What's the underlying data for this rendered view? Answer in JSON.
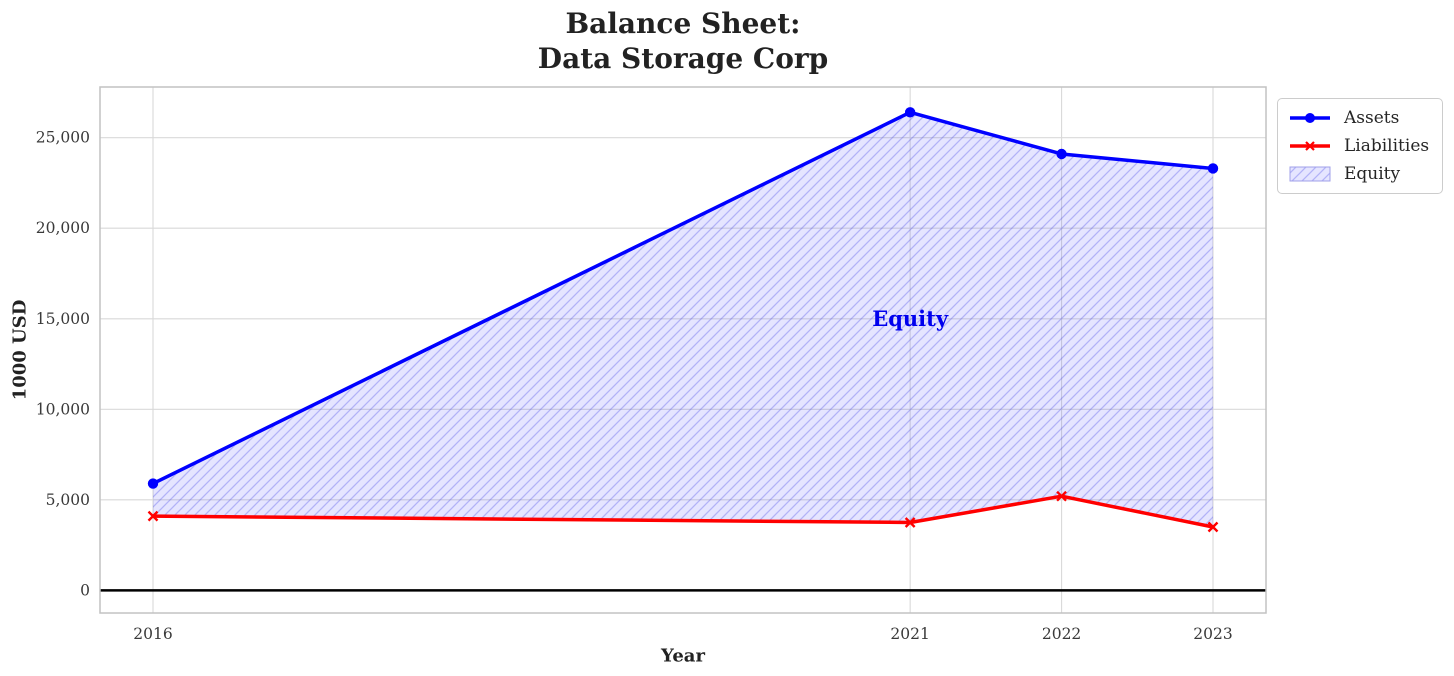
{
  "title": {
    "line1": "Balance Sheet:",
    "line2": "Data Storage Corp"
  },
  "chart_data": {
    "type": "line",
    "title": "Balance Sheet:\nData Storage Corp",
    "xlabel": "Year",
    "ylabel": "1000 USD",
    "x": [
      2016,
      2021,
      2022,
      2023
    ],
    "series": [
      {
        "name": "Assets",
        "values": [
          5900,
          26400,
          24100,
          23300
        ],
        "color": "#0000ff",
        "marker": "circle"
      },
      {
        "name": "Liabilities",
        "values": [
          4100,
          3750,
          5200,
          3500
        ],
        "color": "#ff0000",
        "marker": "x"
      }
    ],
    "fill_between": {
      "name": "Equity",
      "upper": "Assets",
      "lower": "Liabilities",
      "color": "#0000ff",
      "hatch": "///"
    },
    "annotation": {
      "text": "Equity",
      "x": 2021,
      "y": 15000,
      "color": "#0000ee"
    },
    "xticks": [
      2016,
      2021,
      2022,
      2023
    ],
    "yticks": [
      0,
      5000,
      10000,
      15000,
      20000,
      25000
    ],
    "xlim": [
      2015.65,
      2023.35
    ],
    "ylim": [
      -1250,
      27800
    ],
    "zero_line": 0,
    "grid": true,
    "legend": {
      "position": "upper-right-outside",
      "entries": [
        "Assets",
        "Liabilities",
        "Equity"
      ]
    }
  }
}
